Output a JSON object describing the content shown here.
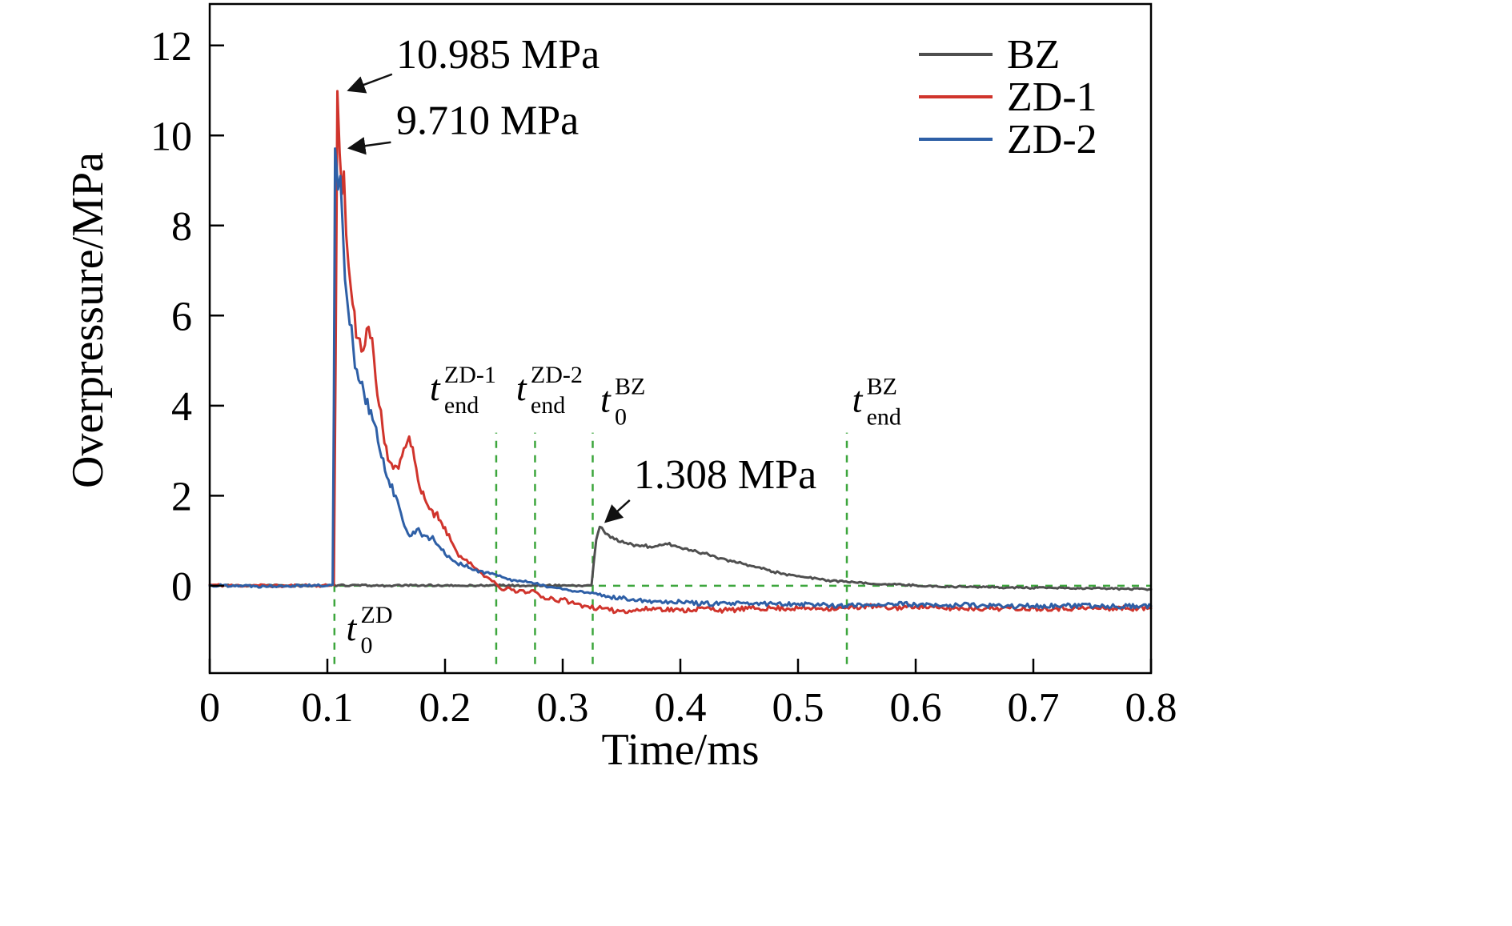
{
  "chart_data": {
    "type": "line",
    "title": "",
    "xlabel": "Time/ms",
    "ylabel": "Overpressure/MPa",
    "xlim": [
      0,
      0.8
    ],
    "ylim": [
      -1.94,
      12.92
    ],
    "grid": false,
    "xticks": {
      "values": [
        0,
        0.1,
        0.2,
        0.3,
        0.4,
        0.5,
        0.6,
        0.7,
        0.8
      ],
      "labels": [
        "0",
        "0.1",
        "0.2",
        "0.3",
        "0.4",
        "0.5",
        "0.6",
        "0.7",
        "0.8"
      ]
    },
    "yticks": {
      "values": [
        0,
        2,
        4,
        6,
        8,
        10,
        12
      ],
      "labels": [
        "0",
        "2",
        "4",
        "6",
        "8",
        "10",
        "12"
      ]
    },
    "legend": {
      "position": "top-right",
      "entries": [
        {
          "label": "BZ",
          "color": "#4f4f4f"
        },
        {
          "label": "ZD-1",
          "color": "#d0342c"
        },
        {
          "label": "ZD-2",
          "color": "#2e5fa6"
        }
      ]
    },
    "hlines": [
      {
        "name": "zero-line",
        "y": 0,
        "x1": 0,
        "x2": 0.8,
        "color": "#3da63d",
        "style": "dashed"
      }
    ],
    "vlines": [
      {
        "name": "t0-zd",
        "x": 0.106,
        "y1": -1.74,
        "y2": 0.12,
        "color": "#3da63d",
        "style": "dashed",
        "label": {
          "main": "t",
          "sub": "0",
          "sup": "ZD"
        },
        "lx": 0.116,
        "ly": -1.21
      },
      {
        "name": "tend-zd1",
        "x": 0.2435,
        "y1": -1.74,
        "y2": 3.4,
        "color": "#3da63d",
        "style": "dashed",
        "label": {
          "main": "t",
          "sub": "end",
          "sup": "ZD-1"
        },
        "lx": 0.187,
        "ly": 4.12
      },
      {
        "name": "tend-zd2",
        "x": 0.2765,
        "y1": -1.74,
        "y2": 3.4,
        "color": "#3da63d",
        "style": "dashed",
        "label": {
          "main": "t",
          "sub": "end",
          "sup": "ZD-2"
        },
        "lx": 0.2605,
        "ly": 4.12
      },
      {
        "name": "t0-bz",
        "x": 0.3255,
        "y1": -1.74,
        "y2": 3.4,
        "color": "#3da63d",
        "style": "dashed",
        "label": {
          "main": "t",
          "sub": "0",
          "sup": "BZ"
        },
        "lx": 0.332,
        "ly": 3.86
      },
      {
        "name": "tend-bz",
        "x": 0.5415,
        "y1": -1.74,
        "y2": 3.4,
        "color": "#3da63d",
        "style": "dashed",
        "label": {
          "main": "t",
          "sub": "end",
          "sup": "BZ"
        },
        "lx": 0.546,
        "ly": 3.86
      }
    ],
    "annotations": [
      {
        "name": "peak-zd1",
        "text": "10.985 MPa",
        "tx": 0.1585,
        "ty": 11.5,
        "arrow": {
          "x1": 0.155,
          "y1": 11.36,
          "x2": 0.118,
          "y2": 11.0
        }
      },
      {
        "name": "peak-zd2",
        "text": "9.710 MPa",
        "tx": 0.1585,
        "ty": 10.03,
        "arrow": {
          "x1": 0.154,
          "y1": 9.85,
          "x2": 0.1185,
          "y2": 9.72
        }
      },
      {
        "name": "peak-bz",
        "text": "1.308 MPa",
        "tx": 0.3605,
        "ty": 2.17,
        "arrow": {
          "x1": 0.357,
          "y1": 1.9,
          "x2": 0.3365,
          "y2": 1.42
        }
      }
    ],
    "series": [
      {
        "name": "BZ",
        "color": "#4f4f4f",
        "seed": 33,
        "noise": {
          "base": 0.018,
          "rel": 0.03,
          "max": 0.08
        },
        "points": [
          [
            0,
            0.01
          ],
          [
            0.03,
            0
          ],
          [
            0.06,
            0.01
          ],
          [
            0.09,
            0
          ],
          [
            0.12,
            0.01
          ],
          [
            0.15,
            0
          ],
          [
            0.18,
            0.01
          ],
          [
            0.21,
            0
          ],
          [
            0.24,
            0.01
          ],
          [
            0.27,
            0
          ],
          [
            0.3,
            0.01
          ],
          [
            0.315,
            0
          ],
          [
            0.3245,
            0.01
          ],
          [
            0.3265,
            0.55
          ],
          [
            0.3285,
            1.02
          ],
          [
            0.3315,
            1.308
          ],
          [
            0.335,
            1.21
          ],
          [
            0.339,
            1.13
          ],
          [
            0.344,
            1.03
          ],
          [
            0.349,
            0.97
          ],
          [
            0.354,
            0.95
          ],
          [
            0.359,
            0.92
          ],
          [
            0.364,
            0.9
          ],
          [
            0.369,
            0.88
          ],
          [
            0.374,
            0.87
          ],
          [
            0.379,
            0.88
          ],
          [
            0.384,
            0.9
          ],
          [
            0.389,
            0.92
          ],
          [
            0.394,
            0.89
          ],
          [
            0.399,
            0.86
          ],
          [
            0.404,
            0.83
          ],
          [
            0.409,
            0.79
          ],
          [
            0.414,
            0.76
          ],
          [
            0.419,
            0.73
          ],
          [
            0.424,
            0.69
          ],
          [
            0.429,
            0.66
          ],
          [
            0.434,
            0.61
          ],
          [
            0.439,
            0.58
          ],
          [
            0.444,
            0.54
          ],
          [
            0.449,
            0.51
          ],
          [
            0.454,
            0.48
          ],
          [
            0.459,
            0.45
          ],
          [
            0.464,
            0.41
          ],
          [
            0.469,
            0.38
          ],
          [
            0.474,
            0.35
          ],
          [
            0.479,
            0.31
          ],
          [
            0.484,
            0.29
          ],
          [
            0.489,
            0.26
          ],
          [
            0.494,
            0.24
          ],
          [
            0.499,
            0.21
          ],
          [
            0.509,
            0.18
          ],
          [
            0.519,
            0.14
          ],
          [
            0.529,
            0.11
          ],
          [
            0.539,
            0.09
          ],
          [
            0.549,
            0.07
          ],
          [
            0.559,
            0.05
          ],
          [
            0.579,
            0.03
          ],
          [
            0.599,
            0.01
          ],
          [
            0.619,
            -0.02
          ],
          [
            0.639,
            -0.02
          ],
          [
            0.659,
            -0.03
          ],
          [
            0.679,
            -0.04
          ],
          [
            0.699,
            -0.05
          ],
          [
            0.719,
            -0.05
          ],
          [
            0.739,
            -0.06
          ],
          [
            0.759,
            -0.06
          ],
          [
            0.779,
            -0.07
          ],
          [
            0.8,
            -0.08
          ]
        ]
      },
      {
        "name": "ZD-1",
        "color": "#d0342c",
        "seed": 11,
        "noise": {
          "base": 0.03,
          "rel": 0.05,
          "max": 0.35
        },
        "points": [
          [
            0,
            0.02
          ],
          [
            0.02,
            0
          ],
          [
            0.04,
            0.01
          ],
          [
            0.06,
            -0.01
          ],
          [
            0.08,
            0.01
          ],
          [
            0.1,
            0
          ],
          [
            0.1055,
            0.02
          ],
          [
            0.107,
            5
          ],
          [
            0.1085,
            10.985
          ],
          [
            0.1105,
            9.6
          ],
          [
            0.1125,
            8.7
          ],
          [
            0.114,
            9.2
          ],
          [
            0.116,
            7.8
          ],
          [
            0.118,
            7.1
          ],
          [
            0.12,
            6.6
          ],
          [
            0.123,
            6.1
          ],
          [
            0.126,
            5.5
          ],
          [
            0.129,
            5.2
          ],
          [
            0.132,
            5.35
          ],
          [
            0.135,
            5.75
          ],
          [
            0.138,
            5.5
          ],
          [
            0.141,
            4.6
          ],
          [
            0.144,
            4.0
          ],
          [
            0.147,
            3.5
          ],
          [
            0.15,
            3.1
          ],
          [
            0.153,
            2.75
          ],
          [
            0.156,
            2.6
          ],
          [
            0.159,
            2.65
          ],
          [
            0.162,
            2.8
          ],
          [
            0.165,
            3.05
          ],
          [
            0.168,
            3.2
          ],
          [
            0.171,
            3.1
          ],
          [
            0.174,
            2.8
          ],
          [
            0.177,
            2.35
          ],
          [
            0.18,
            2.05
          ],
          [
            0.184,
            1.85
          ],
          [
            0.188,
            1.7
          ],
          [
            0.192,
            1.6
          ],
          [
            0.196,
            1.45
          ],
          [
            0.2,
            1.3
          ],
          [
            0.205,
            1.0
          ],
          [
            0.21,
            0.75
          ],
          [
            0.215,
            0.6
          ],
          [
            0.22,
            0.5
          ],
          [
            0.225,
            0.4
          ],
          [
            0.23,
            0.3
          ],
          [
            0.235,
            0.2
          ],
          [
            0.24,
            0.1
          ],
          [
            0.245,
            0.0
          ],
          [
            0.25,
            -0.1
          ],
          [
            0.255,
            -0.05
          ],
          [
            0.26,
            -0.15
          ],
          [
            0.265,
            -0.1
          ],
          [
            0.27,
            -0.15
          ],
          [
            0.275,
            -0.1
          ],
          [
            0.28,
            -0.2
          ],
          [
            0.285,
            -0.3
          ],
          [
            0.29,
            -0.25
          ],
          [
            0.295,
            -0.35
          ],
          [
            0.3,
            -0.3
          ],
          [
            0.31,
            -0.4
          ],
          [
            0.32,
            -0.45
          ],
          [
            0.33,
            -0.5
          ],
          [
            0.34,
            -0.55
          ],
          [
            0.36,
            -0.55
          ],
          [
            0.38,
            -0.5
          ],
          [
            0.4,
            -0.55
          ],
          [
            0.42,
            -0.5
          ],
          [
            0.44,
            -0.55
          ],
          [
            0.46,
            -0.5
          ],
          [
            0.48,
            -0.5
          ],
          [
            0.5,
            -0.5
          ],
          [
            0.52,
            -0.5
          ],
          [
            0.54,
            -0.5
          ],
          [
            0.56,
            -0.45
          ],
          [
            0.58,
            -0.5
          ],
          [
            0.6,
            -0.45
          ],
          [
            0.62,
            -0.5
          ],
          [
            0.64,
            -0.5
          ],
          [
            0.66,
            -0.5
          ],
          [
            0.68,
            -0.5
          ],
          [
            0.7,
            -0.5
          ],
          [
            0.72,
            -0.5
          ],
          [
            0.74,
            -0.5
          ],
          [
            0.76,
            -0.5
          ],
          [
            0.78,
            -0.5
          ],
          [
            0.8,
            -0.5
          ]
        ]
      },
      {
        "name": "ZD-2",
        "color": "#2e5fa6",
        "seed": 22,
        "noise": {
          "base": 0.03,
          "rel": 0.05,
          "max": 0.35
        },
        "points": [
          [
            0,
            0
          ],
          [
            0.02,
            0.01
          ],
          [
            0.04,
            -0.01
          ],
          [
            0.06,
            0
          ],
          [
            0.08,
            0.01
          ],
          [
            0.1,
            0
          ],
          [
            0.1045,
            0.02
          ],
          [
            0.1055,
            4
          ],
          [
            0.1065,
            9.71
          ],
          [
            0.109,
            8.8
          ],
          [
            0.111,
            9.1
          ],
          [
            0.113,
            8.0
          ],
          [
            0.115,
            6.8
          ],
          [
            0.117,
            6.3
          ],
          [
            0.119,
            5.8
          ],
          [
            0.122,
            5.3
          ],
          [
            0.125,
            4.8
          ],
          [
            0.128,
            4.5
          ],
          [
            0.131,
            4.3
          ],
          [
            0.134,
            4.15
          ],
          [
            0.137,
            3.9
          ],
          [
            0.14,
            3.6
          ],
          [
            0.143,
            3.2
          ],
          [
            0.146,
            2.85
          ],
          [
            0.149,
            2.55
          ],
          [
            0.152,
            2.35
          ],
          [
            0.155,
            2.25
          ],
          [
            0.158,
            2.0
          ],
          [
            0.161,
            1.75
          ],
          [
            0.164,
            1.45
          ],
          [
            0.167,
            1.25
          ],
          [
            0.17,
            1.1
          ],
          [
            0.173,
            1.2
          ],
          [
            0.176,
            1.25
          ],
          [
            0.179,
            1.18
          ],
          [
            0.182,
            1.12
          ],
          [
            0.185,
            1.1
          ],
          [
            0.188,
            1.05
          ],
          [
            0.191,
            1.0
          ],
          [
            0.194,
            0.9
          ],
          [
            0.197,
            0.8
          ],
          [
            0.2,
            0.7
          ],
          [
            0.205,
            0.6
          ],
          [
            0.21,
            0.5
          ],
          [
            0.215,
            0.45
          ],
          [
            0.22,
            0.4
          ],
          [
            0.225,
            0.35
          ],
          [
            0.23,
            0.33
          ],
          [
            0.235,
            0.3
          ],
          [
            0.24,
            0.28
          ],
          [
            0.245,
            0.22
          ],
          [
            0.25,
            0.18
          ],
          [
            0.255,
            0.15
          ],
          [
            0.26,
            0.12
          ],
          [
            0.265,
            0.1
          ],
          [
            0.27,
            0.08
          ],
          [
            0.275,
            0.05
          ],
          [
            0.28,
            0.02
          ],
          [
            0.285,
            0.0
          ],
          [
            0.29,
            -0.03
          ],
          [
            0.295,
            -0.05
          ],
          [
            0.3,
            -0.08
          ],
          [
            0.31,
            -0.12
          ],
          [
            0.32,
            -0.15
          ],
          [
            0.33,
            -0.2
          ],
          [
            0.34,
            -0.25
          ],
          [
            0.36,
            -0.3
          ],
          [
            0.38,
            -0.35
          ],
          [
            0.4,
            -0.35
          ],
          [
            0.42,
            -0.4
          ],
          [
            0.44,
            -0.4
          ],
          [
            0.46,
            -0.4
          ],
          [
            0.48,
            -0.4
          ],
          [
            0.5,
            -0.4
          ],
          [
            0.52,
            -0.42
          ],
          [
            0.54,
            -0.45
          ],
          [
            0.56,
            -0.42
          ],
          [
            0.58,
            -0.4
          ],
          [
            0.6,
            -0.42
          ],
          [
            0.62,
            -0.45
          ],
          [
            0.64,
            -0.42
          ],
          [
            0.66,
            -0.45
          ],
          [
            0.68,
            -0.45
          ],
          [
            0.7,
            -0.45
          ],
          [
            0.72,
            -0.45
          ],
          [
            0.74,
            -0.45
          ],
          [
            0.76,
            -0.45
          ],
          [
            0.78,
            -0.45
          ],
          [
            0.8,
            -0.45
          ]
        ]
      }
    ]
  }
}
